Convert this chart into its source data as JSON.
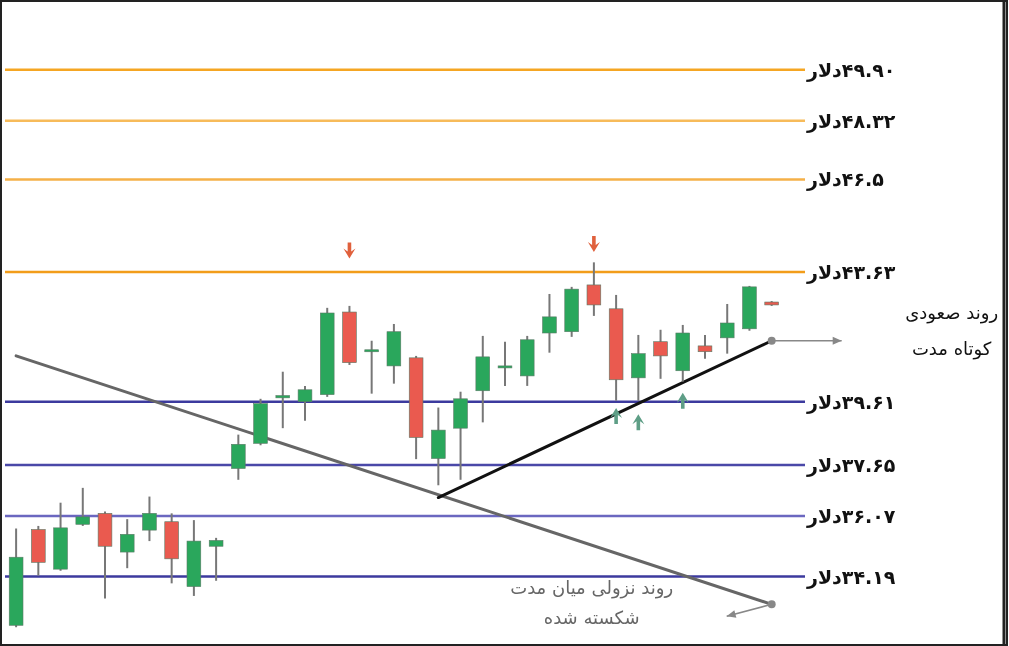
{
  "chart_data": {
    "type": "candlestick",
    "tick_labels": "y",
    "ylim": [
      32.1,
      52.0
    ],
    "yticks": [
      {
        "value": 49.9,
        "label": "۴۹.۹۰دلار"
      },
      {
        "value": 48.32,
        "label": "۴۸.۳۲دلار"
      },
      {
        "value": 46.5,
        "label": "۴۶.۵دلار"
      },
      {
        "value": 43.63,
        "label": "۴۳.۶۳دلار"
      },
      {
        "value": 39.61,
        "label": "۳۹.۶۱دلار"
      },
      {
        "value": 37.65,
        "label": "۳۷.۶۵دلار"
      },
      {
        "value": 36.07,
        "label": "۳۶.۰۷دلار"
      },
      {
        "value": 34.19,
        "label": "۳۴.۱۹دلار"
      }
    ],
    "categories": [
      null,
      null,
      null,
      null,
      null,
      null,
      null,
      null,
      null,
      null,
      null,
      null,
      null,
      null,
      null,
      null,
      null,
      null,
      null,
      null,
      null,
      null,
      null,
      null,
      null,
      null,
      null,
      null,
      null,
      null,
      null,
      null,
      null,
      null,
      null
    ],
    "ohlc": [
      [
        32.68,
        35.68,
        32.62,
        34.79
      ],
      [
        35.65,
        35.76,
        34.22,
        34.63
      ],
      [
        34.42,
        36.48,
        34.37,
        35.7
      ],
      [
        35.81,
        36.94,
        35.76,
        36.04
      ],
      [
        36.15,
        36.21,
        33.51,
        35.13
      ],
      [
        34.95,
        35.97,
        34.45,
        35.5
      ],
      [
        35.63,
        36.67,
        35.29,
        36.15
      ],
      [
        35.89,
        36.15,
        33.98,
        34.74
      ],
      [
        33.88,
        35.94,
        33.59,
        35.29
      ],
      [
        35.13,
        35.39,
        34.06,
        35.31
      ],
      [
        37.54,
        38.59,
        37.19,
        38.29
      ],
      [
        38.32,
        39.7,
        38.26,
        39.55
      ],
      [
        39.73,
        40.54,
        38.79,
        39.8
      ],
      [
        39.61,
        40.1,
        39.02,
        39.98
      ],
      [
        39.83,
        42.52,
        39.76,
        42.36
      ],
      [
        42.39,
        42.58,
        40.75,
        40.82
      ],
      [
        41.16,
        41.5,
        39.86,
        41.22
      ],
      [
        40.72,
        42.02,
        40.17,
        41.78
      ],
      [
        40.97,
        41.03,
        37.83,
        38.5
      ],
      [
        37.85,
        39.43,
        37.02,
        38.73
      ],
      [
        38.79,
        39.92,
        37.19,
        39.7
      ],
      [
        39.95,
        41.65,
        38.97,
        41.0
      ],
      [
        40.66,
        41.47,
        40.1,
        40.72
      ],
      [
        40.41,
        41.65,
        40.1,
        41.53
      ],
      [
        41.74,
        42.95,
        41.13,
        42.24
      ],
      [
        41.78,
        43.17,
        41.62,
        43.1
      ],
      [
        43.23,
        43.93,
        42.27,
        42.61
      ],
      [
        42.49,
        42.92,
        39.64,
        40.29
      ],
      [
        40.35,
        41.68,
        39.64,
        41.1
      ],
      [
        41.47,
        41.84,
        40.32,
        41.03
      ],
      [
        40.57,
        41.99,
        40.23,
        41.74
      ],
      [
        41.34,
        41.68,
        40.94,
        41.16
      ],
      [
        41.59,
        42.64,
        41.1,
        42.05
      ],
      [
        41.87,
        43.2,
        41.81,
        43.17
      ],
      [
        42.7,
        42.73,
        42.58,
        42.61
      ]
    ],
    "colors": [
      "#2aa75c",
      "#ea5a4f",
      "#2aa75c",
      "#2aa75c",
      "#ea5a4f",
      "#2aa75c",
      "#2aa75c",
      "#ea5a4f",
      "#2aa75c",
      "#2aa75c",
      "#2aa75c",
      "#2aa75c",
      "#2aa75c",
      "#2aa75c",
      "#2aa75c",
      "#ea5a4f",
      "#2aa75c",
      "#2aa75c",
      "#ea5a4f",
      "#2aa75c",
      "#2aa75c",
      "#2aa75c",
      "#2aa75c",
      "#2aa75c",
      "#2aa75c",
      "#2aa75c",
      "#ea5a4f",
      "#ea5a4f",
      "#2aa75c",
      "#ea5a4f",
      "#2aa75c",
      "#ea5a4f",
      "#2aa75c",
      "#2aa75c",
      "#ea5a4f"
    ],
    "series": [
      {
        "type": "line",
        "name": "روند نزولی میان مدت\nشکسته شده",
        "color": "#666666",
        "values": [
          41.03,
          null,
          null,
          null,
          null,
          null,
          null,
          null,
          null,
          null,
          null,
          null,
          null,
          null,
          null,
          null,
          null,
          null,
          null,
          null,
          null,
          null,
          null,
          null,
          null,
          null,
          null,
          null,
          null,
          null,
          null,
          null,
          null,
          null,
          33.33
        ]
      },
      {
        "type": "line",
        "name": "روند صعودی\nکوتاه مدت",
        "color": "#111111",
        "values": [
          null,
          null,
          null,
          null,
          null,
          null,
          null,
          null,
          null,
          null,
          null,
          null,
          null,
          null,
          null,
          null,
          null,
          null,
          null,
          36.64,
          null,
          null,
          null,
          null,
          null,
          null,
          null,
          null,
          null,
          null,
          null,
          null,
          null,
          null,
          41.5
        ]
      },
      {
        "type": "scatter",
        "color": "#e0603c",
        "values": [
          null,
          null,
          null,
          null,
          null,
          null,
          null,
          null,
          null,
          null,
          null,
          null,
          null,
          null,
          null,
          44.3,
          null,
          null,
          null,
          null,
          null,
          null,
          null,
          null,
          null,
          null,
          44.5,
          null,
          null,
          null,
          null,
          null,
          null,
          null,
          null
        ]
      },
      {
        "type": "scatter",
        "color": "#5e9e86",
        "values": [
          null,
          null,
          null,
          null,
          null,
          null,
          null,
          null,
          null,
          null,
          null,
          null,
          null,
          null,
          null,
          null,
          null,
          null,
          null,
          null,
          null,
          null,
          null,
          null,
          null,
          null,
          null,
          39.17,
          38.97,
          null,
          39.64,
          null,
          null,
          null,
          null
        ]
      }
    ],
    "ref_lines": [
      {
        "axis": "y",
        "value": 49.9,
        "color": "#f5a623"
      },
      {
        "axis": "y",
        "value": 48.32,
        "color": "#f7bb5a"
      },
      {
        "axis": "y",
        "value": 46.5,
        "color": "#f5b048"
      },
      {
        "axis": "y",
        "value": 43.63,
        "color": "#f29d1a"
      },
      {
        "axis": "y",
        "value": 39.61,
        "color": "#3c3a9e"
      },
      {
        "axis": "y",
        "value": 37.65,
        "color": "#4a48a8"
      },
      {
        "axis": "y",
        "value": 36.07,
        "color": "#6b67c0"
      },
      {
        "axis": "y",
        "value": 34.19,
        "color": "#3c3a9e"
      }
    ]
  }
}
